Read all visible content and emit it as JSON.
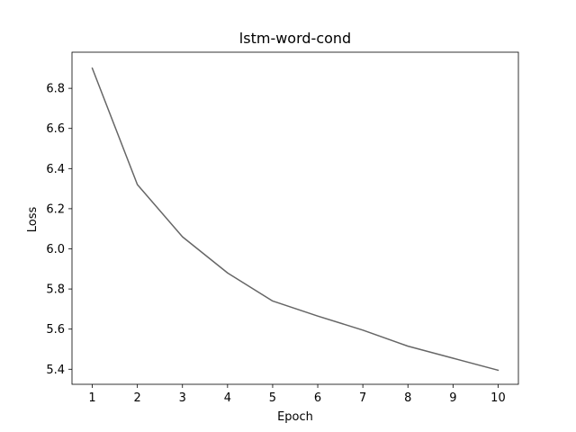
{
  "chart_data": {
    "type": "line",
    "title": "lstm-word-cond",
    "xlabel": "Epoch",
    "ylabel": "Loss",
    "x": [
      1,
      2,
      3,
      4,
      5,
      6,
      7,
      8,
      9,
      10
    ],
    "x_ticks": [
      "1",
      "2",
      "3",
      "4",
      "5",
      "6",
      "7",
      "8",
      "9",
      "10"
    ],
    "y_ticks": [
      "5.4",
      "5.6",
      "5.8",
      "6.0",
      "6.2",
      "6.4",
      "6.6",
      "6.8"
    ],
    "y_tick_values": [
      5.4,
      5.6,
      5.8,
      6.0,
      6.2,
      6.4,
      6.6,
      6.8
    ],
    "xlim": [
      0.55,
      10.45
    ],
    "ylim": [
      5.325,
      6.98
    ],
    "grid": false,
    "series": [
      {
        "color": "#666666",
        "values": [
          6.9,
          6.32,
          6.06,
          5.88,
          5.74,
          5.665,
          5.595,
          5.515,
          5.455,
          5.395
        ]
      }
    ]
  }
}
